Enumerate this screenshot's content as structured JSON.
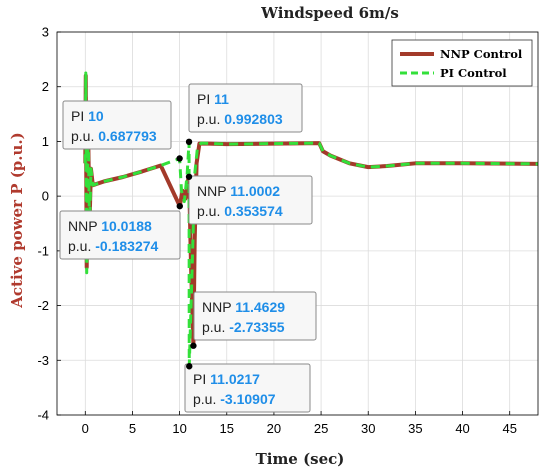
{
  "chart_data": {
    "type": "line",
    "title": "Windspeed 6m/s",
    "xlabel": "Time (sec)",
    "ylabel": "Active power P (p.u.)",
    "xlim": [
      -3,
      48
    ],
    "ylim": [
      -4,
      3
    ],
    "xticks": [
      0,
      5,
      10,
      15,
      20,
      25,
      30,
      35,
      40,
      45
    ],
    "yticks": [
      -4,
      -3,
      -2,
      -1,
      0,
      1,
      2,
      3
    ],
    "grid": true,
    "legend_position": "top-right",
    "series": [
      {
        "name": "NNP Control",
        "color": "#a33a2a",
        "style": "solid",
        "points": [
          [
            0,
            0.6
          ],
          [
            0.05,
            2.2
          ],
          [
            0.15,
            -1.3
          ],
          [
            0.3,
            1.2
          ],
          [
            0.45,
            -0.5
          ],
          [
            0.6,
            0.5
          ],
          [
            0.8,
            0.2
          ],
          [
            2,
            0.27
          ],
          [
            4,
            0.35
          ],
          [
            6,
            0.45
          ],
          [
            8,
            0.56
          ],
          [
            10.0188,
            -0.183274
          ],
          [
            10.3,
            0.1
          ],
          [
            10.6,
            -0.05
          ],
          [
            10.9,
            0.3
          ],
          [
            11.0002,
            0.353574
          ],
          [
            11.2,
            -1.2
          ],
          [
            11.4629,
            -2.73355
          ],
          [
            11.6,
            -0.8
          ],
          [
            11.8,
            0.6
          ],
          [
            12.1,
            0.96
          ],
          [
            13,
            0.96
          ],
          [
            15,
            0.95
          ],
          [
            20,
            0.96
          ],
          [
            24.8,
            0.97
          ],
          [
            25.2,
            0.82
          ],
          [
            26,
            0.74
          ],
          [
            28,
            0.6
          ],
          [
            30,
            0.53
          ],
          [
            32,
            0.55
          ],
          [
            35,
            0.6
          ],
          [
            40,
            0.6
          ],
          [
            48,
            0.59
          ]
        ]
      },
      {
        "name": "PI Control",
        "color": "#33e03a",
        "style": "dashed",
        "points": [
          [
            0,
            0.6
          ],
          [
            0.05,
            2.25
          ],
          [
            0.15,
            -1.4
          ],
          [
            0.3,
            1.3
          ],
          [
            0.45,
            -0.6
          ],
          [
            0.6,
            0.5
          ],
          [
            0.8,
            0.2
          ],
          [
            2,
            0.27
          ],
          [
            4,
            0.35
          ],
          [
            6,
            0.45
          ],
          [
            8,
            0.56
          ],
          [
            10,
            0.687793
          ],
          [
            10.2,
            0.1
          ],
          [
            10.5,
            -0.1
          ],
          [
            10.8,
            0.4
          ],
          [
            11,
            0.992803
          ],
          [
            11.0217,
            -3.10907
          ],
          [
            11.3,
            -1.5
          ],
          [
            11.6,
            0.4
          ],
          [
            11.9,
            0.9
          ],
          [
            12.3,
            0.97
          ],
          [
            15,
            0.95
          ],
          [
            20,
            0.96
          ],
          [
            24.8,
            0.97
          ],
          [
            25.2,
            0.82
          ],
          [
            26,
            0.74
          ],
          [
            28,
            0.6
          ],
          [
            30,
            0.53
          ],
          [
            32,
            0.55
          ],
          [
            35,
            0.6
          ],
          [
            40,
            0.6
          ],
          [
            48,
            0.59
          ]
        ]
      }
    ],
    "datatips": [
      {
        "id": "pi-10",
        "series": "PI",
        "x": 10,
        "y": 0.687793,
        "x_text": "10",
        "y_text": "0.687793"
      },
      {
        "id": "pi-11",
        "series": "PI",
        "x": 11,
        "y": 0.992803,
        "x_text": "11",
        "y_text": "0.992803"
      },
      {
        "id": "nnp-10",
        "series": "NNP",
        "x": 10.0188,
        "y": -0.183274,
        "x_text": "10.0188",
        "y_text": "-0.183274"
      },
      {
        "id": "nnp-11",
        "series": "NNP",
        "x": 11.0002,
        "y": 0.353574,
        "x_text": "11.0002",
        "y_text": "0.353574"
      },
      {
        "id": "nnp-11-46",
        "series": "NNP",
        "x": 11.4629,
        "y": -2.73355,
        "x_text": "11.4629",
        "y_text": "-2.73355"
      },
      {
        "id": "pi-11-02",
        "series": "PI",
        "x": 11.0217,
        "y": -3.10907,
        "x_text": "11.0217",
        "y_text": "-3.10907"
      }
    ],
    "datatip_y_prefix": "p.u."
  }
}
